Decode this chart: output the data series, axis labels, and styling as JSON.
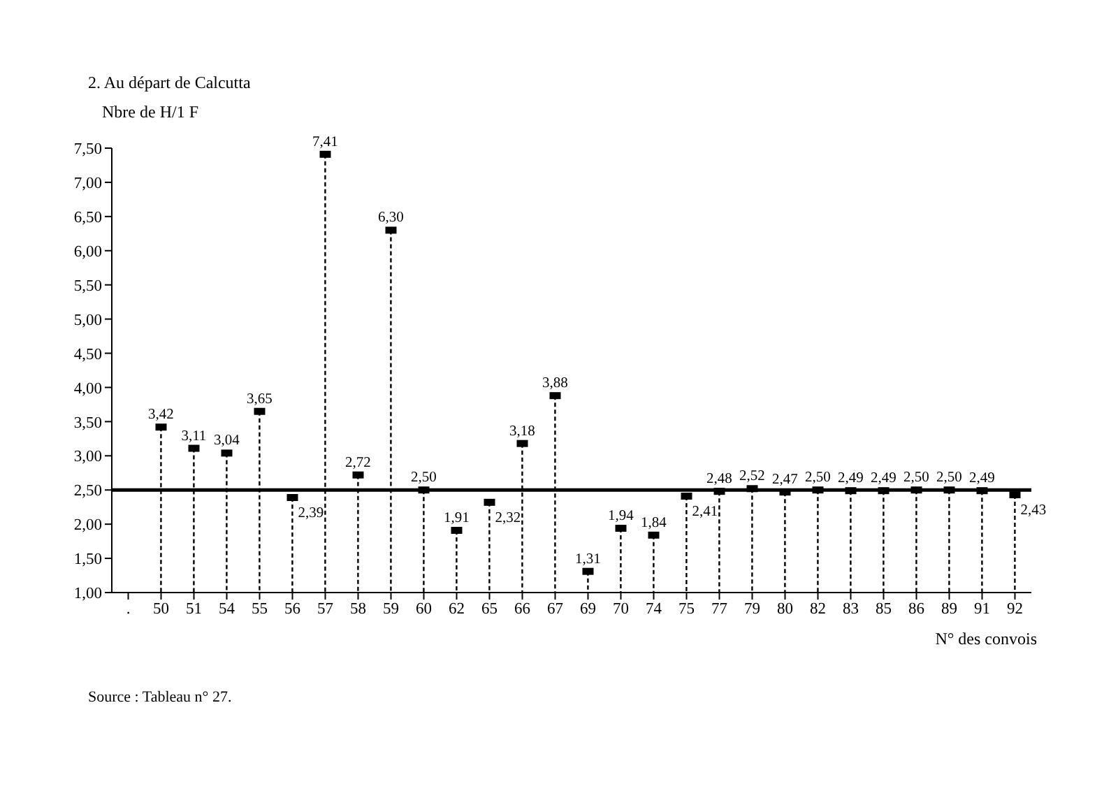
{
  "chart_data": {
    "type": "lollipop",
    "title": "2. Au départ de Calcutta",
    "ylabel": "Nbre de H/1 F",
    "xlabel": "N° des convois",
    "annotations": [
      "Source : Tableau n° 27."
    ],
    "categories": [
      ".",
      "50",
      "51",
      "54",
      "55",
      "56",
      "57",
      "58",
      "59",
      "60",
      "62",
      "65",
      "66",
      "67",
      "69",
      "70",
      "74",
      "75",
      "77",
      "79",
      "80",
      "82",
      "83",
      "85",
      "86",
      "89",
      "91",
      "92"
    ],
    "values": [
      null,
      3.42,
      3.11,
      3.04,
      3.65,
      2.39,
      7.41,
      2.72,
      6.3,
      2.5,
      1.91,
      2.32,
      3.18,
      3.88,
      1.31,
      1.94,
      1.84,
      2.41,
      2.48,
      2.52,
      2.47,
      2.5,
      2.49,
      2.49,
      2.5,
      2.5,
      2.49,
      2.43
    ],
    "value_labels": [
      null,
      "3,42",
      "3,11",
      "3,04",
      "3,65",
      "2,39",
      "7,41",
      "2,72",
      "6,30",
      "2,50",
      "1,91",
      "2,32",
      "3,18",
      "3,88",
      "1,31",
      "1,94",
      "1,84",
      "2,41",
      "2,48",
      "2,52",
      "2,47",
      "2,50",
      "2,49",
      "2,49",
      "2,50",
      "2,50",
      "2,49",
      "2,43"
    ],
    "color": "#000000",
    "line_style": "dashed",
    "marker": "square",
    "ylim": [
      1,
      7.5
    ],
    "yticks": [
      {
        "value": 1,
        "label": "1,00"
      },
      {
        "value": 1.5,
        "label": "1,50"
      },
      {
        "value": 2,
        "label": "2,00"
      },
      {
        "value": 2.5,
        "label": "2,50"
      },
      {
        "value": 3,
        "label": "3,00"
      },
      {
        "value": 3.5,
        "label": "3,50"
      },
      {
        "value": 4,
        "label": "4,00"
      },
      {
        "value": 4.5,
        "label": "4,50"
      },
      {
        "value": 5,
        "label": "5,00"
      },
      {
        "value": 5.5,
        "label": "5,50"
      },
      {
        "value": 6,
        "label": "6,00"
      },
      {
        "value": 6.5,
        "label": "6,50"
      },
      {
        "value": 7,
        "label": "7,00"
      },
      {
        "value": 7.5,
        "label": "7,50"
      }
    ],
    "ref_lines": [
      {
        "axis": "y",
        "value": 2.5,
        "color": "#000000"
      }
    ]
  }
}
